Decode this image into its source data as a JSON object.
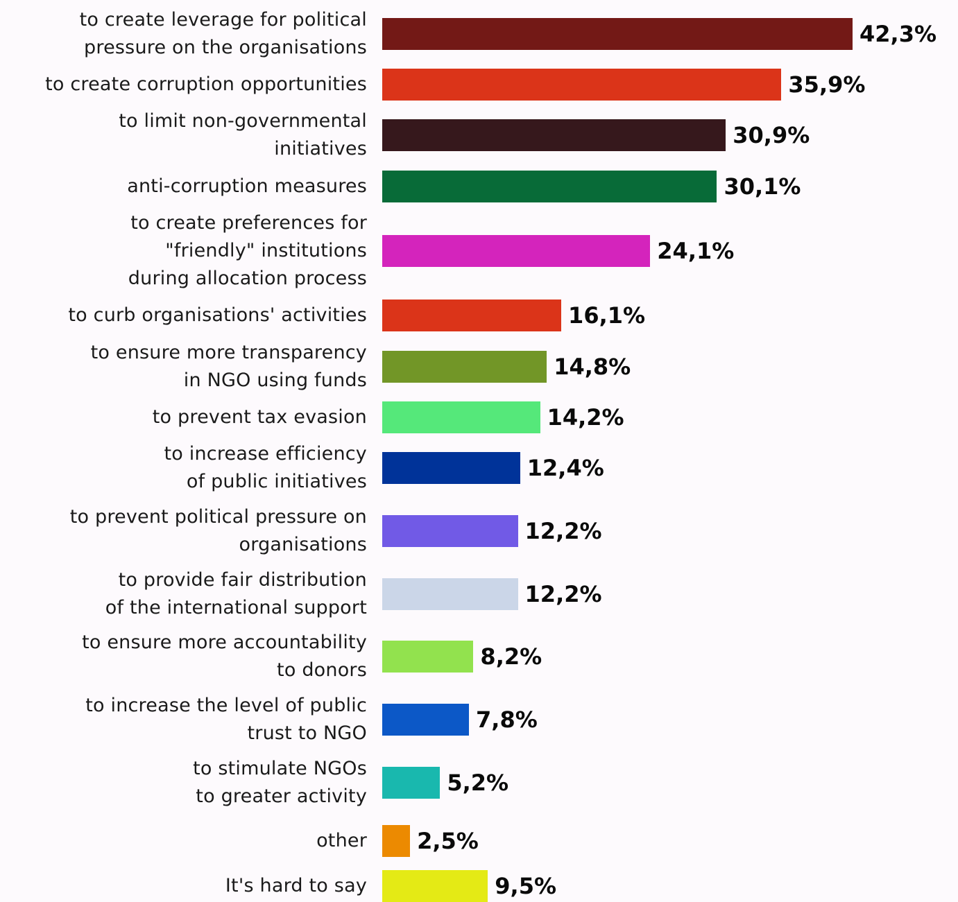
{
  "chart_data": {
    "type": "bar",
    "orientation": "horizontal",
    "title": "",
    "xlabel": "",
    "ylabel": "",
    "xlim": [
      0,
      42.3
    ],
    "grid": false,
    "legend": "none",
    "categories": [
      "to create leverage for political\npressure on the organisations",
      "to create corruption opportunities",
      "to limit non-governmental\ninitiatives",
      "anti-corruption measures",
      "to create preferences for\n\"friendly\" institutions\nduring allocation process",
      "to curb organisations' activities",
      "to ensure more transparency\nin NGO using funds",
      "to prevent tax evasion",
      "to increase efficiency\nof public initiatives",
      "to prevent political pressure on\norganisations",
      "to provide fair distribution\nof the international support",
      "to ensure more accountability\nto donors",
      "to increase the level of public\ntrust to NGO",
      "to stimulate NGOs\nto greater activity",
      "other",
      "It's hard to say"
    ],
    "values": [
      42.3,
      35.9,
      30.9,
      30.1,
      24.1,
      16.1,
      14.8,
      14.2,
      12.4,
      12.2,
      12.2,
      8.2,
      7.8,
      5.2,
      2.5,
      9.5
    ],
    "value_labels": [
      "42,3%",
      "35,9%",
      "30,9%",
      "30,1%",
      "24,1%",
      "16,1%",
      "14,8%",
      "14,2%",
      "12,4%",
      "12,2%",
      "12,2%",
      "8,2%",
      "7,8%",
      "5,2%",
      "2,5%",
      "9,5%"
    ],
    "colors": [
      "#731916",
      "#db3419",
      "#36181c",
      "#086b38",
      "#d424bc",
      "#db3419",
      "#729627",
      "#55e87a",
      "#003399",
      "#715ae6",
      "#cbd6e8",
      "#92e24e",
      "#0c58c7",
      "#19b8ae",
      "#ec8a01",
      "#e4ea15"
    ]
  }
}
